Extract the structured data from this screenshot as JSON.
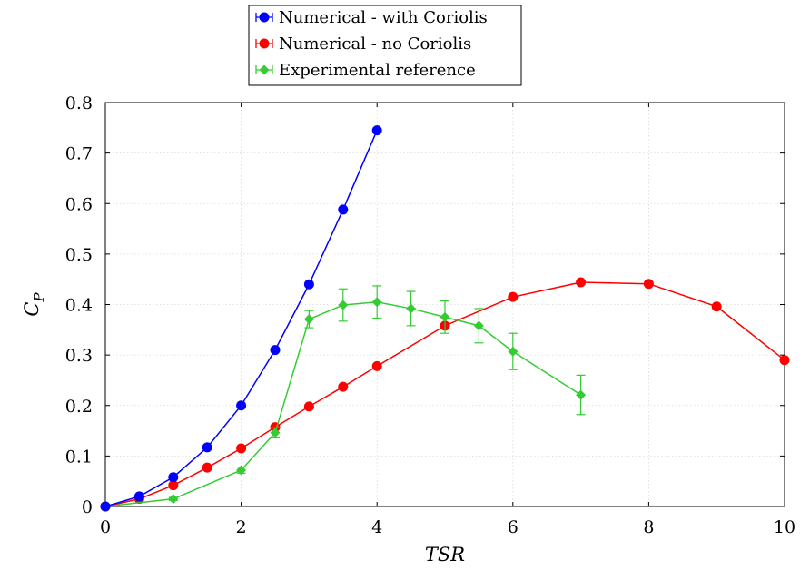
{
  "chart_data": {
    "type": "line",
    "xlabel": "TSR",
    "ylabel_main": "C",
    "ylabel_sub": "P",
    "xlim": [
      0,
      10
    ],
    "ylim": [
      0,
      0.8
    ],
    "xticks": [
      0,
      2,
      4,
      6,
      8,
      10
    ],
    "yticks": [
      0,
      0.1,
      0.2,
      0.3,
      0.4,
      0.5,
      0.6,
      0.7,
      0.8
    ],
    "grid": true,
    "legend_position": "top-center, above plot",
    "series": [
      {
        "name": "Numerical - with Coriolis",
        "color": "#0000ff",
        "marker": "circle",
        "x": [
          0,
          0.5,
          1,
          1.5,
          2,
          2.5,
          3,
          3.5,
          4
        ],
        "y": [
          0,
          0.02,
          0.058,
          0.117,
          0.2,
          0.31,
          0.44,
          0.588,
          0.745
        ]
      },
      {
        "name": "Numerical - no Coriolis",
        "color": "#ff0000",
        "marker": "circle",
        "x": [
          0,
          0.5,
          1,
          1.5,
          2,
          2.5,
          3,
          3.5,
          4,
          5,
          6,
          7,
          8,
          9,
          10
        ],
        "y": [
          0,
          0.015,
          0.042,
          0.077,
          0.115,
          0.157,
          0.198,
          0.237,
          0.278,
          0.358,
          0.415,
          0.444,
          0.441,
          0.396,
          0.29
        ]
      },
      {
        "name": "Experimental reference",
        "color": "#33cc33",
        "marker": "diamond",
        "x": [
          0,
          1,
          2,
          2.5,
          3,
          3.5,
          4,
          4.5,
          5,
          5.5,
          6,
          7
        ],
        "y": [
          0,
          0.015,
          0.072,
          0.146,
          0.371,
          0.399,
          0.405,
          0.392,
          0.375,
          0.358,
          0.307,
          0.221
        ],
        "err": [
          0,
          0.003,
          0.006,
          0.01,
          0.017,
          0.032,
          0.032,
          0.034,
          0.032,
          0.034,
          0.036,
          0.039
        ]
      }
    ]
  }
}
